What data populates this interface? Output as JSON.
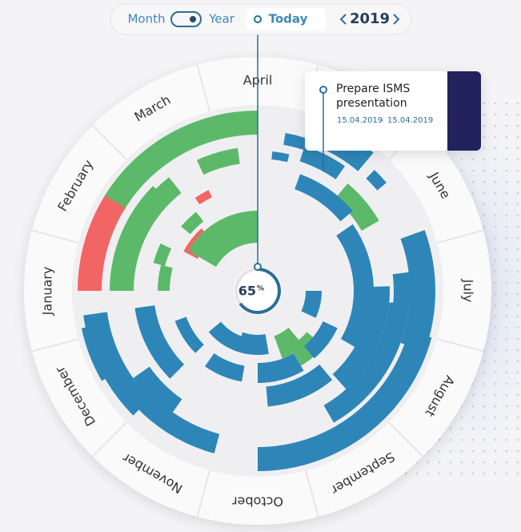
{
  "toolbar": {
    "month": "Month",
    "year": "Year",
    "today": "Today",
    "current_year": "2019"
  },
  "months": [
    "April",
    "June",
    "July",
    "August",
    "September",
    "October",
    "November",
    "December",
    "January",
    "February",
    "March"
  ],
  "tooltip": {
    "title": "Prepare ISMS presentation",
    "start": "15.04.2019",
    "separator": "-",
    "end": "15.04.2019"
  },
  "progress": {
    "value": 65,
    "unit": "%"
  }
}
